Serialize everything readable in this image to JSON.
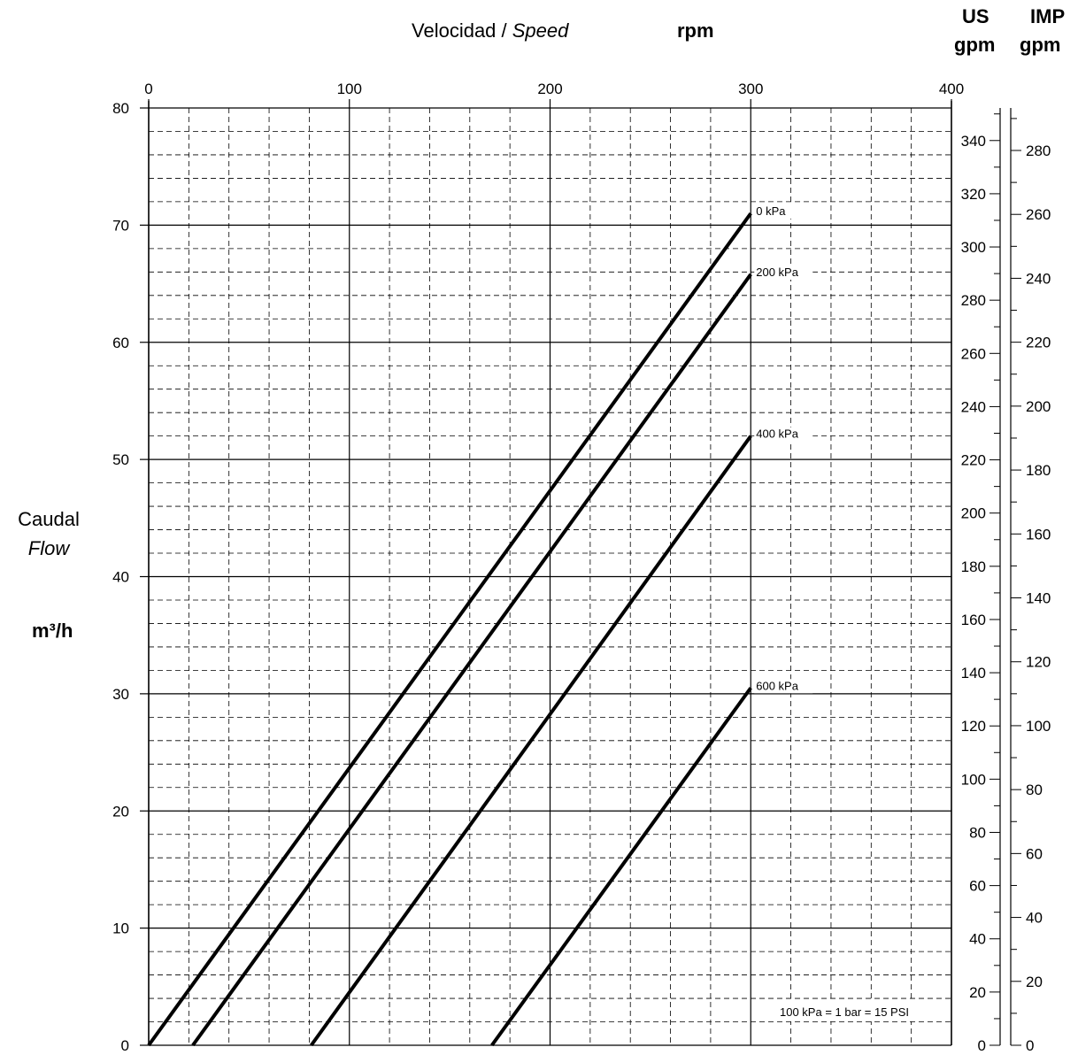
{
  "header": {
    "x_title": "Velocidad / ",
    "x_title_italic": "Speed",
    "x_unit": "rpm",
    "us_label_line1": "US",
    "us_label_line2": "gpm",
    "imp_label_line1": "IMP",
    "imp_label_line2": "gpm"
  },
  "y_title": {
    "line1": "Caudal",
    "line2": "Flow",
    "unit": "m³/h"
  },
  "note": "100 kPa = 1 bar = 15 PSI",
  "chart_data": {
    "type": "line",
    "x_axis": {
      "range": [
        0,
        400
      ],
      "ticks": [
        0,
        100,
        200,
        300,
        400
      ],
      "minor_step": 20,
      "position": "top"
    },
    "y_axis": {
      "range": [
        0,
        80
      ],
      "ticks": [
        0,
        10,
        20,
        30,
        40,
        50,
        60,
        70,
        80
      ],
      "minor_step": 2
    },
    "us_gpm_axis": {
      "ticks": [
        0,
        20,
        40,
        60,
        80,
        100,
        120,
        140,
        160,
        180,
        200,
        220,
        240,
        260,
        280,
        300,
        320,
        340
      ],
      "per_m3h": 4.4029
    },
    "imp_gpm_axis": {
      "ticks": [
        0,
        20,
        40,
        60,
        80,
        100,
        120,
        140,
        160,
        180,
        200,
        220,
        240,
        260,
        280
      ],
      "per_m3h": 3.6662
    },
    "grid": true,
    "series": [
      {
        "name": "0 kPa",
        "points": [
          [
            0,
            0
          ],
          [
            300,
            71
          ]
        ]
      },
      {
        "name": "200 kPa",
        "points": [
          [
            22,
            0
          ],
          [
            300,
            65.8
          ]
        ]
      },
      {
        "name": "400 kPa",
        "points": [
          [
            81,
            0
          ],
          [
            300,
            52
          ]
        ]
      },
      {
        "name": "600 kPa",
        "points": [
          [
            171,
            0
          ],
          [
            300,
            30.5
          ]
        ]
      }
    ]
  }
}
